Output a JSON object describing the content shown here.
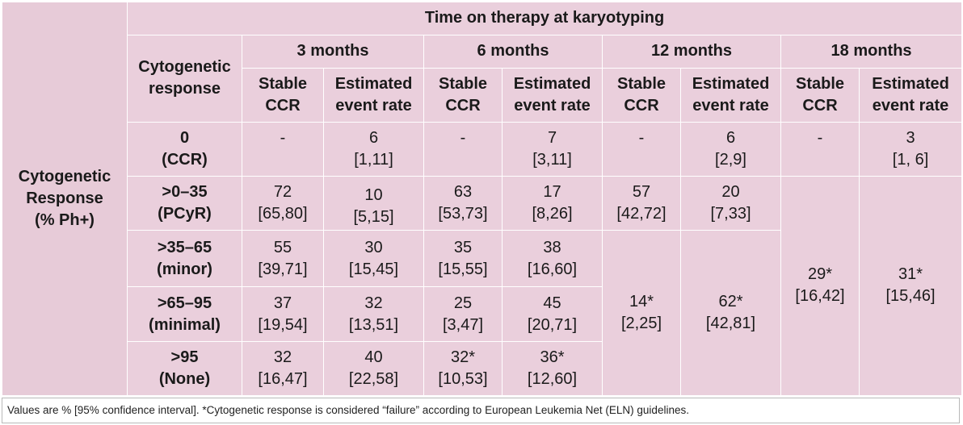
{
  "corner": {
    "line1": "Cytogenetic",
    "line2": "Response",
    "line3": "(% Ph+)"
  },
  "title": "Time on therapy at karyotyping",
  "response_header": {
    "line1": "Cytogenetic",
    "line2": "response"
  },
  "time_headers": [
    "3 months",
    "6 months",
    "12 months",
    "18 months"
  ],
  "sub_headers": {
    "stable": {
      "line1": "Stable",
      "line2": "CCR"
    },
    "event": {
      "line1": "Estimated",
      "line2": "event rate"
    }
  },
  "rows": [
    {
      "label": [
        "0",
        "(CCR)"
      ],
      "m3": {
        "stable": [
          "-",
          ""
        ],
        "event": [
          "6",
          "[1,11]"
        ]
      },
      "m6": {
        "stable": [
          "-",
          ""
        ],
        "event": [
          "7",
          "[3,11]"
        ]
      },
      "m12": {
        "stable": [
          "-",
          ""
        ],
        "event": [
          "6",
          "[2,9]"
        ]
      },
      "m18": {
        "stable": [
          "-",
          ""
        ],
        "event": [
          "3",
          "[1, 6]"
        ]
      }
    },
    {
      "label": [
        ">0–35",
        "(PCyR)"
      ],
      "m3": {
        "stable": [
          "72",
          "[65,80]"
        ],
        "event": [
          "10",
          "[5,15]"
        ]
      },
      "m6": {
        "stable": [
          "63",
          "[53,73]"
        ],
        "event": [
          "17",
          "[8,26]"
        ]
      },
      "m12": {
        "stable": [
          "57",
          "[42,72]"
        ],
        "event": [
          "20",
          "[7,33]"
        ]
      },
      "m18": {
        "stable": [
          "29*",
          "[16,42]"
        ],
        "event": [
          "31*",
          "[15,46]"
        ]
      }
    },
    {
      "label": [
        ">35–65",
        "(minor)"
      ],
      "m3": {
        "stable": [
          "55",
          "[39,71]"
        ],
        "event": [
          "30",
          "[15,45]"
        ]
      },
      "m6": {
        "stable": [
          "35",
          "[15,55]"
        ],
        "event": [
          "38",
          "[16,60]"
        ]
      },
      "m12": {
        "stable": [
          "14*",
          "[2,25]"
        ],
        "event": [
          "62*",
          "[42,81]"
        ]
      }
    },
    {
      "label": [
        ">65–95",
        "(minimal)"
      ],
      "m3": {
        "stable": [
          "37",
          "[19,54]"
        ],
        "event": [
          "32",
          "[13,51]"
        ]
      },
      "m6": {
        "stable": [
          "25",
          "[3,47]"
        ],
        "event": [
          "45",
          "[20,71]"
        ]
      }
    },
    {
      "label": [
        ">95",
        "(None)"
      ],
      "m3": {
        "stable": [
          "32",
          "[16,47]"
        ],
        "event": [
          "40",
          "[22,58]"
        ]
      },
      "m6": {
        "stable": [
          "32*",
          "[10,53]"
        ],
        "event": [
          "36*",
          "[12,60]"
        ]
      }
    }
  ],
  "footnote": "Values are % [95% confidence interval]. *Cytogenetic response is considered “failure” according to European Leukemia Net (ELN) guidelines.",
  "colors": {
    "cell_bg": "#eacfdc",
    "title_color": "#a3145a",
    "border": "#ffffff"
  }
}
